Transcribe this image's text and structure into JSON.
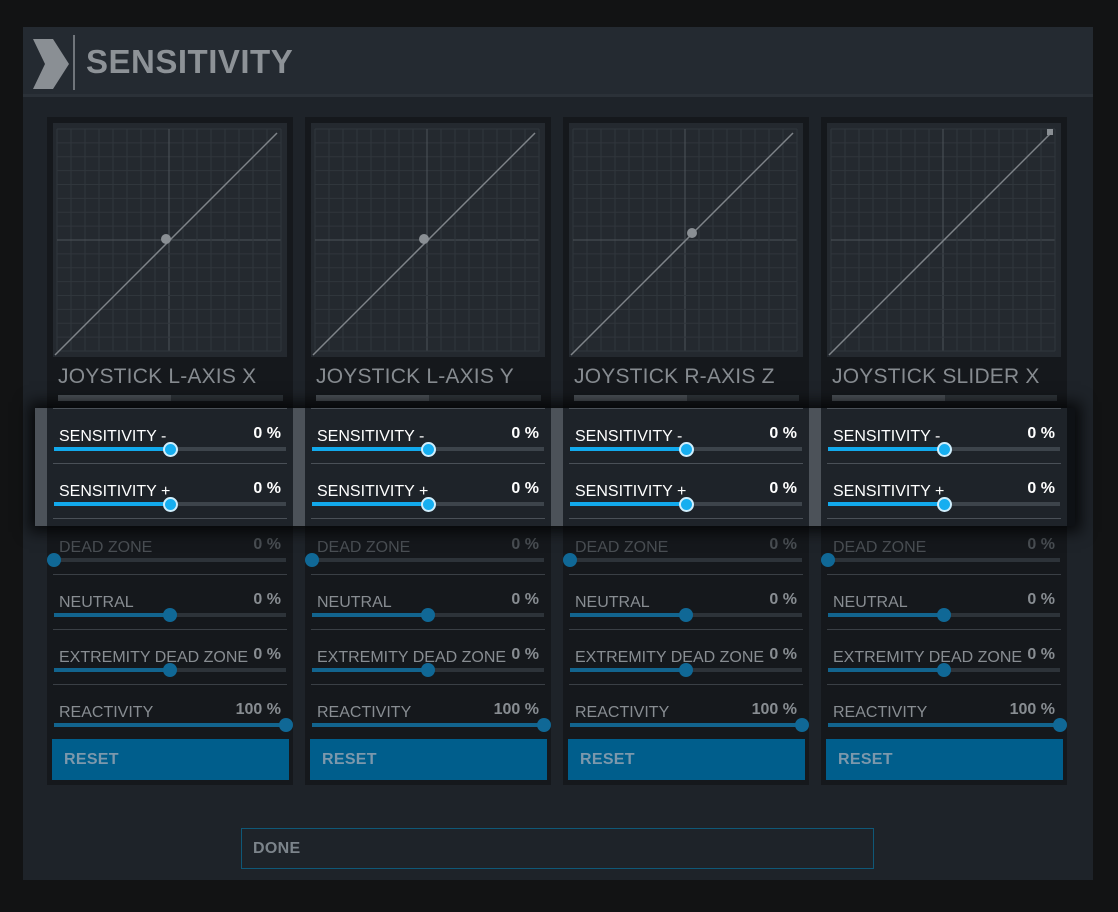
{
  "header": {
    "title": "SENSITIVITY"
  },
  "axes": [
    {
      "name": "JOYSTICK L-AXIS X",
      "curve_point": "center",
      "sensitivity_minus": {
        "label": "SENSITIVITY -",
        "value": "0 %",
        "level": 0.5
      },
      "sensitivity_plus": {
        "label": "SENSITIVITY +",
        "value": "0 %",
        "level": 0.5
      },
      "dead_zone": {
        "label": "DEAD ZONE",
        "value": "0 %",
        "level": 0
      },
      "neutral": {
        "label": "NEUTRAL",
        "value": "0 %",
        "level": 0.5
      },
      "extremity_dead_zone": {
        "label": "EXTREMITY DEAD ZONE",
        "value": "0 %",
        "level": 0.5
      },
      "reactivity": {
        "label": "REACTIVITY",
        "value": "100 %",
        "level": 1
      },
      "reset_label": "RESET"
    },
    {
      "name": "JOYSTICK L-AXIS Y",
      "curve_point": "center",
      "sensitivity_minus": {
        "label": "SENSITIVITY -",
        "value": "0 %",
        "level": 0.5
      },
      "sensitivity_plus": {
        "label": "SENSITIVITY +",
        "value": "0 %",
        "level": 0.5
      },
      "dead_zone": {
        "label": "DEAD ZONE",
        "value": "0 %",
        "level": 0
      },
      "neutral": {
        "label": "NEUTRAL",
        "value": "0 %",
        "level": 0.5
      },
      "extremity_dead_zone": {
        "label": "EXTREMITY DEAD ZONE",
        "value": "0 %",
        "level": 0.5
      },
      "reactivity": {
        "label": "REACTIVITY",
        "value": "100 %",
        "level": 1
      },
      "reset_label": "RESET"
    },
    {
      "name": "JOYSTICK R-AXIS Z",
      "curve_point": "center",
      "sensitivity_minus": {
        "label": "SENSITIVITY -",
        "value": "0 %",
        "level": 0.5
      },
      "sensitivity_plus": {
        "label": "SENSITIVITY +",
        "value": "0 %",
        "level": 0.5
      },
      "dead_zone": {
        "label": "DEAD ZONE",
        "value": "0 %",
        "level": 0
      },
      "neutral": {
        "label": "NEUTRAL",
        "value": "0 %",
        "level": 0.5
      },
      "extremity_dead_zone": {
        "label": "EXTREMITY DEAD ZONE",
        "value": "0 %",
        "level": 0.5
      },
      "reactivity": {
        "label": "REACTIVITY",
        "value": "100 %",
        "level": 1
      },
      "reset_label": "RESET"
    },
    {
      "name": "JOYSTICK SLIDER X",
      "curve_point": "end",
      "sensitivity_minus": {
        "label": "SENSITIVITY -",
        "value": "0 %",
        "level": 0.5
      },
      "sensitivity_plus": {
        "label": "SENSITIVITY +",
        "value": "0 %",
        "level": 0.5
      },
      "dead_zone": {
        "label": "DEAD ZONE",
        "value": "0 %",
        "level": 0
      },
      "neutral": {
        "label": "NEUTRAL",
        "value": "0 %",
        "level": 0.5
      },
      "extremity_dead_zone": {
        "label": "EXTREMITY DEAD ZONE",
        "value": "0 %",
        "level": 0.5
      },
      "reactivity": {
        "label": "REACTIVITY",
        "value": "100 %",
        "level": 1
      },
      "reset_label": "RESET"
    }
  ],
  "footer": {
    "done_label": "DONE"
  },
  "colors": {
    "accent": "#12a9ec",
    "slider_fill": "#12648e",
    "button": "#005e8c",
    "background": "#1e2329"
  }
}
